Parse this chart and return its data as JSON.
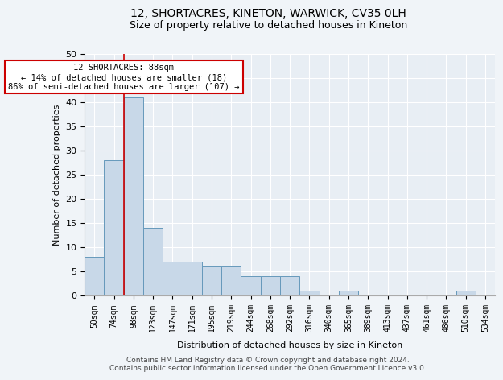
{
  "title1": "12, SHORTACRES, KINETON, WARWICK, CV35 0LH",
  "title2": "Size of property relative to detached houses in Kineton",
  "xlabel": "Distribution of detached houses by size in Kineton",
  "ylabel": "Number of detached properties",
  "bar_values": [
    8,
    28,
    41,
    14,
    7,
    7,
    6,
    6,
    4,
    4,
    4,
    1,
    0,
    1,
    0,
    0,
    0,
    0,
    0,
    1,
    0
  ],
  "bin_labels": [
    "50sqm",
    "74sqm",
    "98sqm",
    "123sqm",
    "147sqm",
    "171sqm",
    "195sqm",
    "219sqm",
    "244sqm",
    "268sqm",
    "292sqm",
    "316sqm",
    "340sqm",
    "365sqm",
    "389sqm",
    "413sqm",
    "437sqm",
    "461sqm",
    "486sqm",
    "510sqm",
    "534sqm"
  ],
  "bar_color": "#c8d8e8",
  "bar_edge_color": "#6699bb",
  "vline_x": 1.5,
  "vline_color": "#cc0000",
  "annotation_text": "12 SHORTACRES: 88sqm\n← 14% of detached houses are smaller (18)\n86% of semi-detached houses are larger (107) →",
  "annotation_box_color": "white",
  "annotation_box_edge": "#cc0000",
  "ylim": [
    0,
    50
  ],
  "yticks": [
    0,
    5,
    10,
    15,
    20,
    25,
    30,
    35,
    40,
    45,
    50
  ],
  "footer_text": "Contains HM Land Registry data © Crown copyright and database right 2024.\nContains public sector information licensed under the Open Government Licence v3.0.",
  "bg_color": "#f0f4f8",
  "plot_bg_color": "#e8eef4"
}
